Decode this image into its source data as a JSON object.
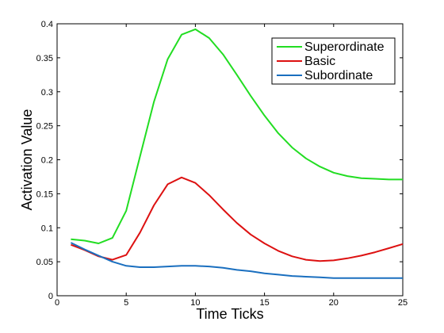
{
  "chart_data": {
    "type": "line",
    "title": "",
    "xlabel": "Time Ticks",
    "ylabel": "Activation Value",
    "xlim": [
      0,
      25
    ],
    "ylim": [
      0,
      0.4
    ],
    "xticks": [
      0,
      5,
      10,
      15,
      20,
      25
    ],
    "yticks": [
      0,
      0.05,
      0.1,
      0.15,
      0.2,
      0.25,
      0.3,
      0.35,
      0.4
    ],
    "ytick_labels": [
      "0",
      "0.05",
      "0.1",
      "0.15",
      "0.2",
      "0.25",
      "0.3",
      "0.35",
      "0.4"
    ],
    "grid": false,
    "legend_position": "top-right",
    "x": [
      1,
      2,
      3,
      4,
      5,
      6,
      7,
      8,
      9,
      10,
      11,
      12,
      13,
      14,
      15,
      16,
      17,
      18,
      19,
      20,
      21,
      22,
      23,
      24,
      25
    ],
    "series": [
      {
        "name": "Superordinate",
        "color": "#22dd22",
        "values": [
          0.083,
          0.081,
          0.077,
          0.085,
          0.125,
          0.205,
          0.285,
          0.348,
          0.384,
          0.392,
          0.379,
          0.355,
          0.325,
          0.294,
          0.265,
          0.239,
          0.218,
          0.202,
          0.19,
          0.181,
          0.176,
          0.173,
          0.172,
          0.171,
          0.171
        ]
      },
      {
        "name": "Basic",
        "color": "#dd1111",
        "values": [
          0.075,
          0.067,
          0.058,
          0.053,
          0.06,
          0.093,
          0.133,
          0.164,
          0.174,
          0.166,
          0.148,
          0.127,
          0.107,
          0.09,
          0.077,
          0.066,
          0.058,
          0.053,
          0.051,
          0.052,
          0.055,
          0.059,
          0.064,
          0.07,
          0.076
        ]
      },
      {
        "name": "Subordinate",
        "color": "#1a6fbf",
        "values": [
          0.078,
          0.068,
          0.059,
          0.05,
          0.044,
          0.042,
          0.042,
          0.043,
          0.044,
          0.044,
          0.043,
          0.041,
          0.038,
          0.036,
          0.033,
          0.031,
          0.029,
          0.028,
          0.027,
          0.026,
          0.026,
          0.026,
          0.026,
          0.026,
          0.026
        ]
      }
    ]
  }
}
